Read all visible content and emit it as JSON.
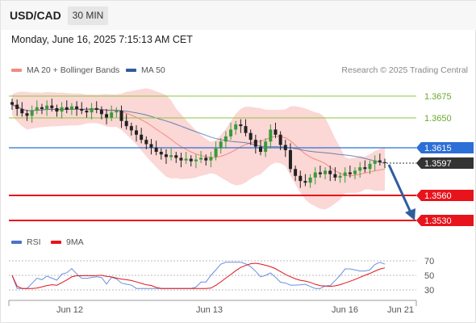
{
  "header": {
    "symbol": "USD/CAD",
    "timeframe": "30 MIN"
  },
  "datetime": "Monday, June 16, 2025 7:15:13 AM CET",
  "legend": {
    "ma20_bb": {
      "label": "MA 20 + Bollinger Bands",
      "color": "#f28b82"
    },
    "ma50": {
      "label": "MA 50",
      "color": "#2f5d9e"
    }
  },
  "research": "Research © 2025 Trading Central",
  "levels": [
    {
      "value": "1.3675",
      "kind": "resistance-green"
    },
    {
      "value": "1.3650",
      "kind": "resistance-green"
    },
    {
      "value": "1.3615",
      "kind": "pivot-blue"
    },
    {
      "value": "1.3597",
      "kind": "current-price"
    },
    {
      "value": "1.3560",
      "kind": "support-red"
    },
    {
      "value": "1.3530",
      "kind": "support-red"
    }
  ],
  "colors": {
    "green_level": "#8dc63f",
    "blue_level": "#2d6fd6",
    "red_level": "#e8141c",
    "current": "#333333",
    "candle_up": "#3a9a3a",
    "candle_down": "#222222",
    "bb_fill": "#f9c9c7",
    "arrow": "#2f5d9e",
    "rsi_line": "#6b8fe0",
    "rsi_ma": "#e0141c"
  },
  "rsi_legend": {
    "rsi": {
      "label": "RSI",
      "color": "#4a72c8"
    },
    "ma9": {
      "label": "9MA",
      "color": "#e8141c"
    }
  },
  "rsi_axis": [
    "70",
    "50",
    "30"
  ],
  "x_axis": [
    "Jun 12",
    "Jun 13",
    "Jun 16",
    "Jun 21"
  ],
  "chart_data": {
    "type": "candlestick",
    "price_axis_levels": [
      1.3675,
      1.365,
      1.3615,
      1.3597,
      1.356,
      1.353
    ],
    "forecast": "downward arrow from 1.3597 toward 1.3530",
    "closes": [
      1.3665,
      1.366,
      1.3655,
      1.3652,
      1.3658,
      1.3662,
      1.366,
      1.3664,
      1.3661,
      1.3657,
      1.3662,
      1.3659,
      1.3663,
      1.366,
      1.3658,
      1.3656,
      1.3661,
      1.3659,
      1.3654,
      1.365,
      1.3656,
      1.3658,
      1.3646,
      1.364,
      1.3635,
      1.363,
      1.3624,
      1.3619,
      1.3615,
      1.361,
      1.3607,
      1.3604,
      1.3606,
      1.3603,
      1.36,
      1.3602,
      1.3599,
      1.3601,
      1.3603,
      1.36,
      1.3604,
      1.3614,
      1.3622,
      1.3628,
      1.3636,
      1.3642,
      1.364,
      1.3632,
      1.3624,
      1.3616,
      1.361,
      1.3622,
      1.3636,
      1.363,
      1.3618,
      1.3612,
      1.359,
      1.3582,
      1.3576,
      1.3574,
      1.358,
      1.3586,
      1.3584,
      1.3588,
      1.3584,
      1.358,
      1.3582,
      1.3586,
      1.3584,
      1.3588,
      1.3592,
      1.359,
      1.3596,
      1.36,
      1.3598,
      1.3597
    ]
  }
}
